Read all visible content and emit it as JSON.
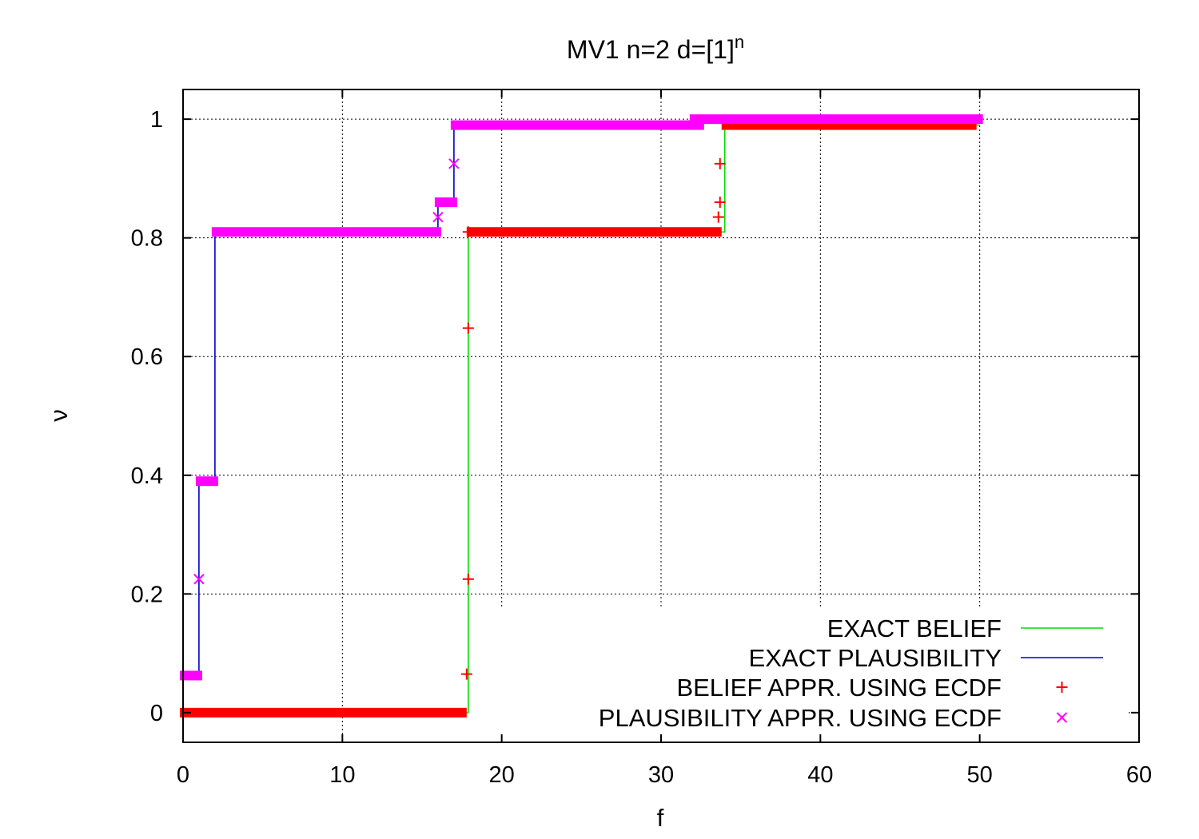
{
  "chart_data": {
    "type": "line",
    "title_main": "MV1 n=2 d=[1]",
    "title_superscript": "n",
    "xlabel": "f",
    "ylabel": "ν",
    "xlim": [
      0,
      60
    ],
    "ylim": [
      -0.05,
      1.05
    ],
    "xticks": [
      0,
      10,
      20,
      30,
      40,
      50,
      60
    ],
    "xtick_labels": [
      "0",
      "10",
      "20",
      "30",
      "40",
      "50",
      "60"
    ],
    "yticks": [
      0,
      0.2,
      0.4,
      0.6,
      0.8,
      1
    ],
    "ytick_labels": [
      "0",
      "0.2",
      "0.4",
      "0.6",
      "0.8",
      "1"
    ],
    "grid": true,
    "legend_position": "bottom-right",
    "series": [
      {
        "name": "EXACT BELIEF",
        "style": "step-line",
        "color": "#00dd00",
        "x": [
          0,
          17.9,
          17.9,
          34,
          34,
          50
        ],
        "y": [
          0,
          0,
          0.81,
          0.81,
          0.99,
          0.99
        ]
      },
      {
        "name": "EXACT PLAUSIBILITY",
        "style": "step-line",
        "color": "#0000cc",
        "x": [
          0,
          1,
          1,
          2,
          2,
          16,
          16,
          17,
          17,
          32,
          32,
          50
        ],
        "y": [
          0.0625,
          0.0625,
          0.39,
          0.39,
          0.81,
          0.81,
          0.86,
          0.86,
          0.99,
          0.99,
          1,
          1
        ]
      },
      {
        "name": "BELIEF APPR. USING ECDF",
        "style": "plus",
        "color": "#ff0000",
        "dense_segments": [
          {
            "x_start": 0,
            "x_end": 17.6,
            "y": 0
          },
          {
            "x_start": 18,
            "x_end": 33.6,
            "y": 0.81
          },
          {
            "x_start": 34,
            "x_end": 49.6,
            "y": 0.99
          }
        ],
        "points": [
          {
            "x": 17.8,
            "y": 0.065
          },
          {
            "x": 17.9,
            "y": 0.225
          },
          {
            "x": 17.9,
            "y": 0.648
          },
          {
            "x": 17.9,
            "y": 0.81
          },
          {
            "x": 33.6,
            "y": 0.835
          },
          {
            "x": 33.7,
            "y": 0.86
          },
          {
            "x": 33.7,
            "y": 0.925
          }
        ]
      },
      {
        "name": "PLAUSIBILITY APPR. USING ECDF",
        "style": "cross",
        "color": "#ff00ff",
        "dense_segments": [
          {
            "x_start": 0,
            "x_end": 1,
            "y": 0.0625
          },
          {
            "x_start": 1,
            "x_end": 2,
            "y": 0.39
          },
          {
            "x_start": 2,
            "x_end": 16,
            "y": 0.81
          },
          {
            "x_start": 16,
            "x_end": 17,
            "y": 0.86
          },
          {
            "x_start": 17,
            "x_end": 32.5,
            "y": 0.99
          },
          {
            "x_start": 32,
            "x_end": 50,
            "y": 1
          }
        ],
        "points": [
          {
            "x": 1,
            "y": 0.225
          },
          {
            "x": 16,
            "y": 0.835
          },
          {
            "x": 17,
            "y": 0.925
          }
        ]
      }
    ]
  }
}
